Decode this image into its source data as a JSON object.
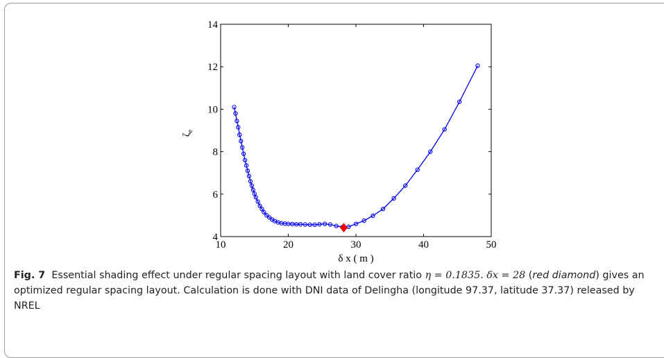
{
  "chart_data": {
    "type": "line",
    "xlabel": "δ x ( m )",
    "ylabel": "ζe",
    "xlim": [
      10,
      50
    ],
    "ylim": [
      4,
      14
    ],
    "xticks": [
      10,
      20,
      30,
      40,
      50
    ],
    "yticks": [
      4,
      6,
      8,
      10,
      12,
      14
    ],
    "grid": false,
    "series": [
      {
        "marker": "circle",
        "color": "#0000ee",
        "x": [
          12.0,
          12.2,
          12.4,
          12.6,
          12.8,
          13.0,
          13.2,
          13.4,
          13.6,
          13.8,
          14.0,
          14.2,
          14.4,
          14.6,
          14.8,
          15.0,
          15.2,
          15.5,
          15.8,
          16.1,
          16.4,
          16.8,
          17.2,
          17.6,
          18.0,
          18.5,
          19.0,
          19.5,
          20.0,
          20.6,
          21.2,
          21.8,
          22.5,
          23.2,
          23.9,
          24.6,
          25.4,
          26.2,
          27.1,
          28.0,
          28.9,
          30.0,
          31.2,
          32.5,
          34.0,
          35.6,
          37.3,
          39.1,
          41.0,
          43.1,
          45.3,
          48.0
        ],
        "y": [
          10.1,
          9.8,
          9.45,
          9.15,
          8.8,
          8.5,
          8.2,
          7.9,
          7.6,
          7.35,
          7.1,
          6.85,
          6.6,
          6.4,
          6.2,
          6.02,
          5.85,
          5.65,
          5.45,
          5.3,
          5.15,
          5.0,
          4.9,
          4.8,
          4.73,
          4.67,
          4.63,
          4.61,
          4.6,
          4.59,
          4.58,
          4.58,
          4.57,
          4.56,
          4.56,
          4.58,
          4.6,
          4.57,
          4.5,
          4.45,
          4.46,
          4.6,
          4.75,
          4.98,
          5.3,
          5.8,
          6.4,
          7.15,
          8.0,
          9.05,
          10.35,
          12.05
        ]
      }
    ],
    "optimum_marker": {
      "x": 28.2,
      "y": 4.42,
      "shape": "diamond",
      "color": "#ee0000"
    }
  },
  "caption": {
    "label": "Fig. 7",
    "t1": "Essential shading effect under regular spacing layout with land cover ratio ",
    "eta_eq": "η = 0.1835",
    "t2": ". ",
    "dx_eq": "δx = 28",
    "t3": " (",
    "red_diamond": "red diamond",
    "t4": ") gives an optimized regular spacing layout. Calculation is done with DNI data of Delingha (longitude 97.37, latitude 37.37) released by NREL"
  }
}
